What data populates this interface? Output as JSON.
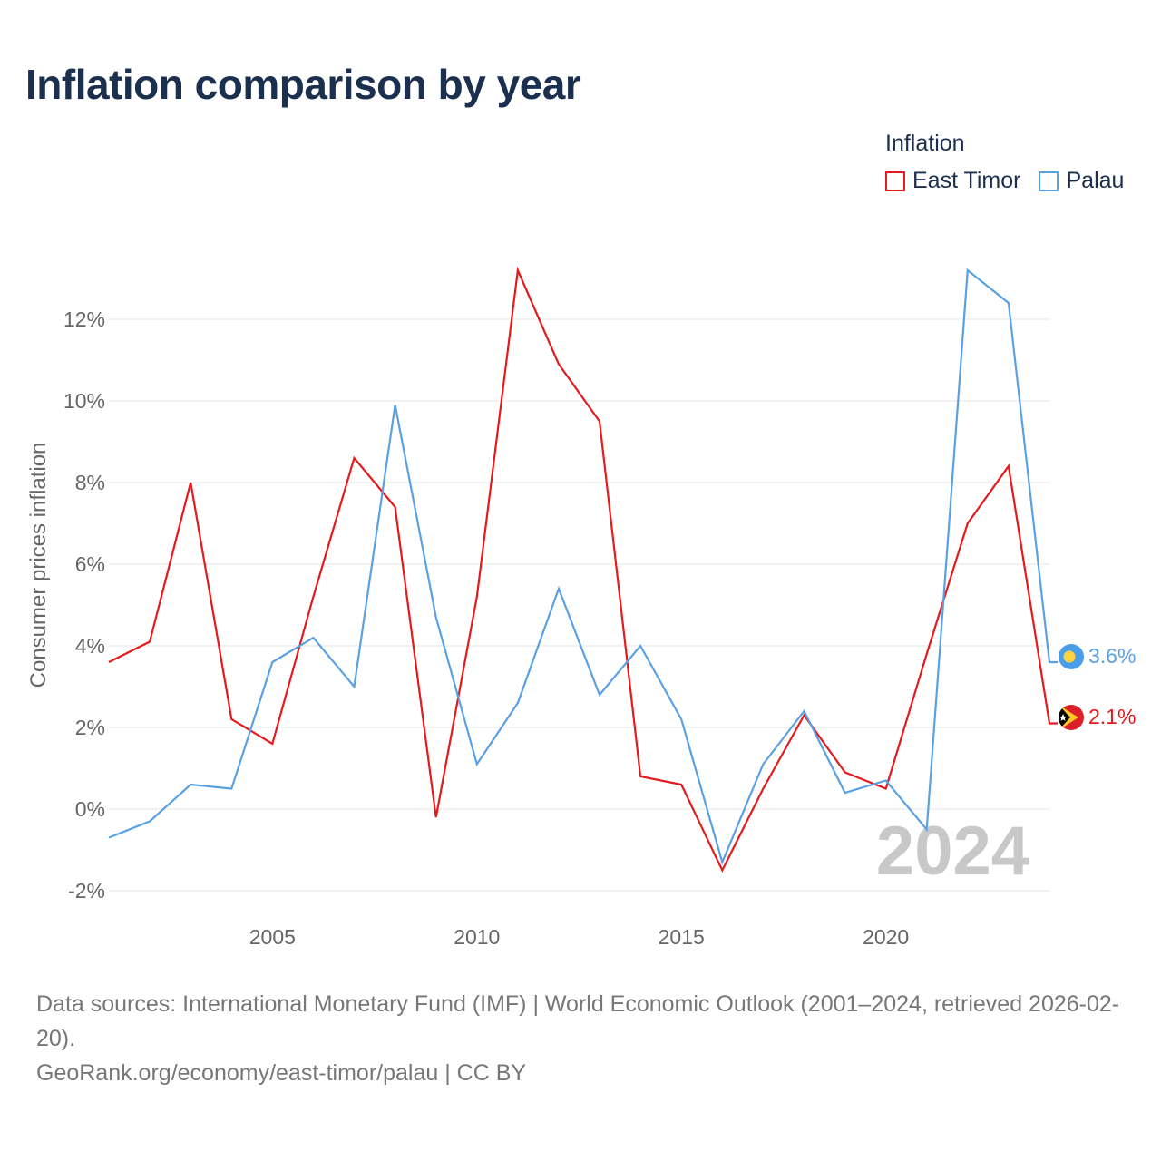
{
  "title": "Inflation comparison by year",
  "legend": {
    "title": "Inflation",
    "items": [
      {
        "label": "East Timor",
        "color": "#e41a1c"
      },
      {
        "label": "Palau",
        "color": "#5aa1e3"
      }
    ]
  },
  "chart_data": {
    "type": "line",
    "ylabel": "Consumer prices inflation",
    "xlabel": "",
    "ylim": [
      -2.4,
      13.6
    ],
    "xlim": [
      2001,
      2024
    ],
    "y_ticks": [
      -2,
      0,
      2,
      4,
      6,
      8,
      10,
      12
    ],
    "y_tick_labels": [
      "-2%",
      "0%",
      "2%",
      "4%",
      "6%",
      "8%",
      "10%",
      "12%"
    ],
    "x_ticks": [
      2005,
      2010,
      2015,
      2020
    ],
    "x_tick_labels": [
      "2005",
      "2010",
      "2015",
      "2020"
    ],
    "x": [
      2001,
      2002,
      2003,
      2004,
      2005,
      2006,
      2007,
      2008,
      2009,
      2010,
      2011,
      2012,
      2013,
      2014,
      2015,
      2016,
      2017,
      2018,
      2019,
      2020,
      2021,
      2022,
      2023,
      2024
    ],
    "series": [
      {
        "name": "East Timor",
        "color": "#e41a1c",
        "values": [
          3.6,
          4.1,
          8.0,
          2.2,
          1.6,
          5.2,
          8.6,
          7.4,
          -0.2,
          5.2,
          13.2,
          10.9,
          9.5,
          0.8,
          0.6,
          -1.5,
          0.5,
          2.3,
          0.9,
          0.5,
          3.8,
          7.0,
          8.4,
          2.1
        ],
        "end_label": "2.1%"
      },
      {
        "name": "Palau",
        "color": "#5aa1e3",
        "values": [
          -0.7,
          -0.3,
          0.6,
          0.5,
          3.6,
          4.2,
          3.0,
          9.9,
          4.7,
          1.1,
          2.6,
          5.4,
          2.8,
          4.0,
          2.2,
          -1.3,
          1.1,
          2.4,
          0.4,
          0.7,
          -0.5,
          13.2,
          12.4,
          3.6
        ],
        "end_label": "3.6%"
      }
    ],
    "watermark_year": "2024",
    "grid": true
  },
  "footer": {
    "sources": "Data sources: International Monetary Fund (IMF) | World Economic Outlook (2001–2024, retrieved 2026-02-20).",
    "credit": "GeoRank.org/economy/east-timor/palau | CC BY"
  }
}
